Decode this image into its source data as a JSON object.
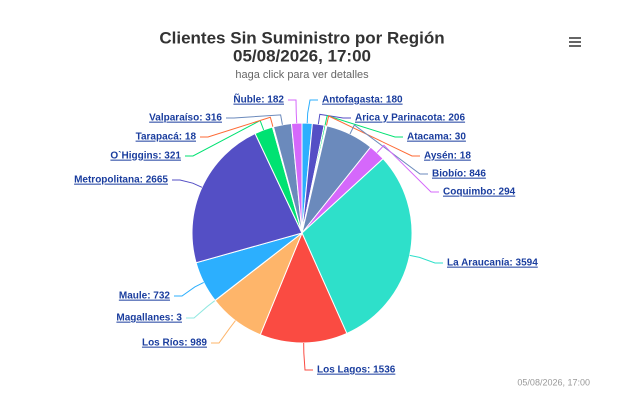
{
  "chart_data": {
    "type": "pie",
    "title": "Clientes Sin Suministro por Región",
    "title_line2": "05/08/2026, 17:00",
    "subtitle": "haga click para ver detalles",
    "credits": "05/08/2026, 17:00",
    "categories": [
      "Antofagasta",
      "Arica y Parinacota",
      "Atacama",
      "Aysén",
      "Biobío",
      "Coquimbo",
      "La Araucanía",
      "Los Lagos",
      "Los Ríos",
      "Magallanes",
      "Maule",
      "Metropolitana",
      "O`Higgins",
      "Tarapacá",
      "Valparaíso",
      "Ñuble"
    ],
    "values": [
      180,
      206,
      30,
      18,
      846,
      294,
      3594,
      1536,
      989,
      3,
      732,
      2665,
      321,
      18,
      316,
      182
    ],
    "value_labels": [
      "Antofagasta: 180",
      "Arica y Parinacota: 206",
      "Atacama: 30",
      "Aysén: 18",
      "Biobío: 846",
      "Coquimbo: 294",
      "La Araucanía: 3594",
      "Los Lagos: 1536",
      "Los Ríos: 989",
      "Magallanes: 3",
      "Maule: 732",
      "Metropolitana: 2665",
      "O`Higgins: 321",
      "Tarapacá: 18",
      "Valparaíso: 316",
      "Ñuble: 182"
    ],
    "colors": [
      "#2caffe",
      "#544fc5",
      "#00e272",
      "#fe6a35",
      "#6b8abc",
      "#d568fb",
      "#2ee0ca",
      "#fa4b42",
      "#feb56a",
      "#91e8e1",
      "#2caffe",
      "#544fc5",
      "#00e272",
      "#fe6a35",
      "#6b8abc",
      "#d568fb"
    ]
  }
}
